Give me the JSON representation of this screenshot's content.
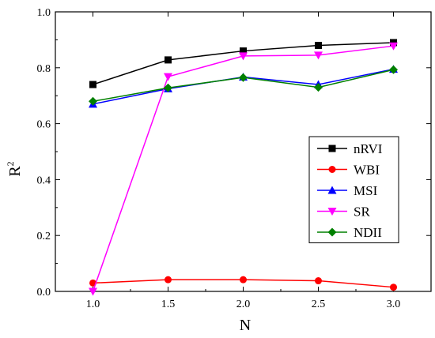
{
  "chart_data": {
    "type": "line",
    "x": [
      1.0,
      1.5,
      2.0,
      2.5,
      3.0
    ],
    "xlabel": "N",
    "ylabel": "R",
    "ylabel_superscript": "2",
    "xlim": [
      0.75,
      3.25
    ],
    "ylim": [
      0.0,
      1.0
    ],
    "xticks": [
      "1.0",
      "1.5",
      "2.0",
      "2.5",
      "3.0"
    ],
    "yticks": [
      "0.0",
      "0.2",
      "0.4",
      "0.6",
      "0.8",
      "1.0"
    ],
    "legend_position": "right",
    "grid": false,
    "series": [
      {
        "name": "nRVI",
        "color": "#000000",
        "marker": "square",
        "values": [
          0.74,
          0.828,
          0.86,
          0.88,
          0.89
        ]
      },
      {
        "name": "WBI",
        "color": "#ff0000",
        "marker": "circle",
        "values": [
          0.03,
          0.042,
          0.042,
          0.038,
          0.015
        ]
      },
      {
        "name": "MSI",
        "color": "#0000ff",
        "marker": "triangle-up",
        "values": [
          0.67,
          0.725,
          0.767,
          0.74,
          0.795
        ]
      },
      {
        "name": "SR",
        "color": "#ff00ff",
        "marker": "triangle-down",
        "values": [
          0.0,
          0.768,
          0.842,
          0.845,
          0.878
        ]
      },
      {
        "name": "NDII",
        "color": "#008000",
        "marker": "diamond",
        "values": [
          0.68,
          0.728,
          0.765,
          0.73,
          0.793
        ]
      }
    ]
  }
}
